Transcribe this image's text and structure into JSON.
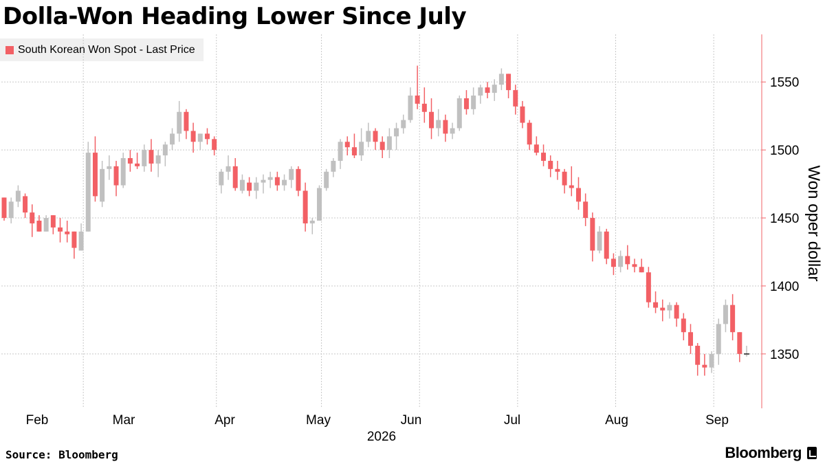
{
  "header": {
    "title": "Dolla-Won Heading Lower Since July"
  },
  "legend": {
    "label": "South Korean Won Spot - Last Price",
    "swatch_color": "#f26065"
  },
  "footer": {
    "source": "Source: Bloomberg",
    "brand": "Bloomberg"
  },
  "colors": {
    "up": "#c0c0c0",
    "down": "#f26065",
    "axis": "#f26065",
    "grid": "#c8c8c8"
  },
  "chart_data": {
    "type": "candlestick",
    "title": "Dolla-Won Heading Lower Since July",
    "ylabel": "Won oper dollar",
    "xlabel": "2026",
    "ylim": [
      1310,
      1585
    ],
    "yticks": [
      1350,
      1400,
      1450,
      1500,
      1550
    ],
    "yaxis_side": "right",
    "grid": true,
    "legend_position": "top-left",
    "months": [
      "Feb",
      "Mar",
      "Apr",
      "May",
      "Jun",
      "Jul",
      "Aug",
      "Sep"
    ],
    "year_label": "2026",
    "candles": [
      [
        1465,
        1465,
        1448,
        1450
      ],
      [
        1450,
        1465,
        1446,
        1462
      ],
      [
        1462,
        1474,
        1458,
        1470
      ],
      [
        1466,
        1468,
        1450,
        1454
      ],
      [
        1454,
        1460,
        1436,
        1446
      ],
      [
        1448,
        1452,
        1440,
        1440
      ],
      [
        1440,
        1452,
        1440,
        1450
      ],
      [
        1452,
        1452,
        1438,
        1443
      ],
      [
        1443,
        1450,
        1432,
        1440
      ],
      [
        1440,
        1448,
        1432,
        1438
      ],
      [
        1440,
        1440,
        1420,
        1428
      ],
      [
        1426,
        1446,
        1426,
        1440
      ],
      [
        1440,
        1506,
        1440,
        1498
      ],
      [
        1498,
        1510,
        1462,
        1466
      ],
      [
        1462,
        1492,
        1458,
        1486
      ],
      [
        1486,
        1496,
        1478,
        1488
      ],
      [
        1488,
        1492,
        1466,
        1474
      ],
      [
        1474,
        1498,
        1472,
        1494
      ],
      [
        1494,
        1500,
        1484,
        1490
      ],
      [
        1490,
        1498,
        1486,
        1488
      ],
      [
        1488,
        1504,
        1484,
        1500
      ],
      [
        1500,
        1508,
        1484,
        1490
      ],
      [
        1490,
        1500,
        1480,
        1496
      ],
      [
        1496,
        1506,
        1488,
        1504
      ],
      [
        1504,
        1516,
        1500,
        1512
      ],
      [
        1512,
        1536,
        1506,
        1528
      ],
      [
        1528,
        1530,
        1508,
        1514
      ],
      [
        1514,
        1520,
        1498,
        1506
      ],
      [
        1506,
        1512,
        1500,
        1512
      ],
      [
        1512,
        1516,
        1504,
        1508
      ],
      [
        1508,
        1510,
        1496,
        1500
      ],
      [
        1474,
        1486,
        1468,
        1484
      ],
      [
        1484,
        1496,
        1478,
        1488
      ],
      [
        1488,
        1494,
        1470,
        1472
      ],
      [
        1470,
        1482,
        1468,
        1478
      ],
      [
        1476,
        1480,
        1466,
        1470
      ],
      [
        1470,
        1480,
        1464,
        1476
      ],
      [
        1476,
        1482,
        1468,
        1478
      ],
      [
        1478,
        1484,
        1472,
        1480
      ],
      [
        1480,
        1484,
        1470,
        1474
      ],
      [
        1474,
        1482,
        1470,
        1478
      ],
      [
        1478,
        1488,
        1472,
        1486
      ],
      [
        1486,
        1488,
        1466,
        1470
      ],
      [
        1470,
        1476,
        1440,
        1446
      ],
      [
        1446,
        1450,
        1438,
        1448
      ],
      [
        1448,
        1474,
        1448,
        1472
      ],
      [
        1472,
        1486,
        1470,
        1484
      ],
      [
        1484,
        1494,
        1480,
        1492
      ],
      [
        1492,
        1508,
        1486,
        1506
      ],
      [
        1506,
        1510,
        1496,
        1502
      ],
      [
        1502,
        1512,
        1494,
        1496
      ],
      [
        1496,
        1516,
        1492,
        1506
      ],
      [
        1506,
        1520,
        1502,
        1514
      ],
      [
        1514,
        1516,
        1500,
        1506
      ],
      [
        1506,
        1510,
        1494,
        1500
      ],
      [
        1500,
        1516,
        1494,
        1510
      ],
      [
        1510,
        1520,
        1500,
        1516
      ],
      [
        1516,
        1526,
        1512,
        1522
      ],
      [
        1522,
        1546,
        1520,
        1540
      ],
      [
        1540,
        1562,
        1530,
        1534
      ],
      [
        1534,
        1546,
        1520,
        1528
      ],
      [
        1528,
        1538,
        1508,
        1516
      ],
      [
        1516,
        1530,
        1510,
        1522
      ],
      [
        1522,
        1526,
        1506,
        1512
      ],
      [
        1512,
        1520,
        1508,
        1516
      ],
      [
        1516,
        1540,
        1514,
        1538
      ],
      [
        1538,
        1544,
        1526,
        1530
      ],
      [
        1530,
        1546,
        1526,
        1540
      ],
      [
        1540,
        1548,
        1534,
        1546
      ],
      [
        1546,
        1550,
        1538,
        1542
      ],
      [
        1542,
        1552,
        1536,
        1548
      ],
      [
        1548,
        1560,
        1544,
        1556
      ],
      [
        1556,
        1556,
        1538,
        1544
      ],
      [
        1544,
        1548,
        1526,
        1532
      ],
      [
        1532,
        1536,
        1516,
        1520
      ],
      [
        1520,
        1522,
        1500,
        1504
      ],
      [
        1504,
        1510,
        1496,
        1498
      ],
      [
        1498,
        1504,
        1488,
        1492
      ],
      [
        1492,
        1496,
        1480,
        1486
      ],
      [
        1486,
        1492,
        1478,
        1484
      ],
      [
        1484,
        1486,
        1468,
        1474
      ],
      [
        1474,
        1488,
        1466,
        1472
      ],
      [
        1472,
        1480,
        1456,
        1462
      ],
      [
        1462,
        1468,
        1444,
        1450
      ],
      [
        1450,
        1454,
        1418,
        1426
      ],
      [
        1426,
        1444,
        1424,
        1440
      ],
      [
        1440,
        1442,
        1416,
        1420
      ],
      [
        1420,
        1424,
        1408,
        1414
      ],
      [
        1414,
        1426,
        1410,
        1422
      ],
      [
        1422,
        1430,
        1412,
        1416
      ],
      [
        1416,
        1420,
        1410,
        1414
      ],
      [
        1414,
        1420,
        1410,
        1410
      ],
      [
        1410,
        1414,
        1384,
        1388
      ],
      [
        1388,
        1396,
        1380,
        1384
      ],
      [
        1384,
        1390,
        1374,
        1382
      ],
      [
        1382,
        1388,
        1376,
        1386
      ],
      [
        1386,
        1388,
        1370,
        1376
      ],
      [
        1376,
        1380,
        1360,
        1366
      ],
      [
        1366,
        1372,
        1350,
        1356
      ],
      [
        1356,
        1358,
        1334,
        1342
      ],
      [
        1342,
        1350,
        1334,
        1340
      ],
      [
        1340,
        1352,
        1336,
        1350
      ],
      [
        1350,
        1376,
        1342,
        1372
      ],
      [
        1372,
        1390,
        1366,
        1386
      ],
      [
        1386,
        1394,
        1360,
        1366
      ],
      [
        1366,
        1366,
        1344,
        1350
      ],
      [
        1350,
        1356,
        1348,
        1350
      ]
    ]
  }
}
